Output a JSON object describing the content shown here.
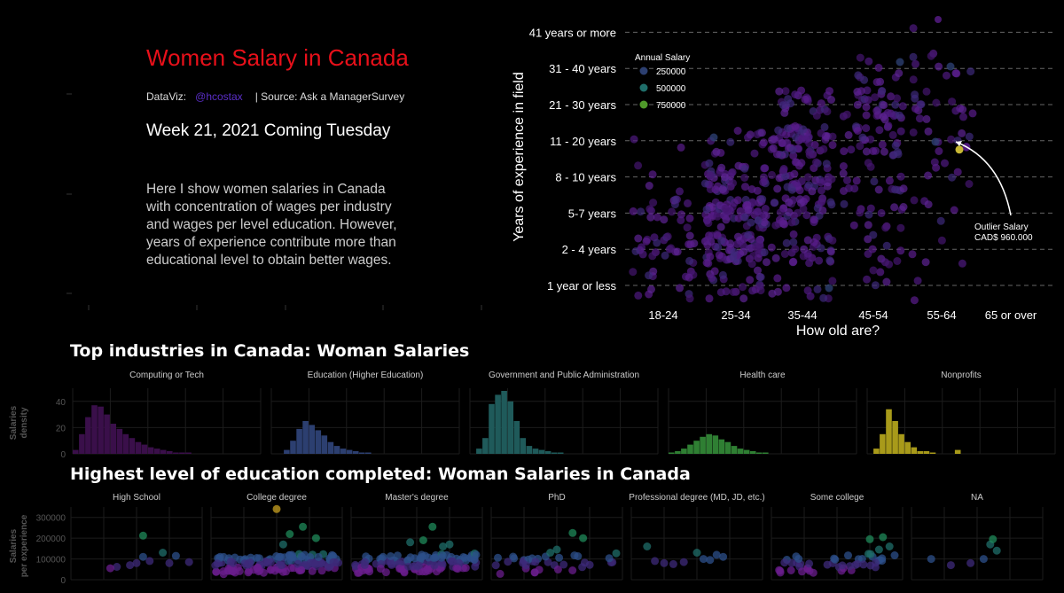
{
  "intro": {
    "title": "Women Salary in Canada",
    "credit_label": "DataViz:",
    "credit_handle": "@hcostax",
    "credit_source": "| Source: Ask a ManagerSurvey",
    "week": "Week 21, 2021 Coming Tuesday",
    "description": "Here I show women salaries in Canada with concentration of wages per industry and wages per level education. However, years of experience contribute more than educational level to obtain better wages."
  },
  "colors": {
    "background": "#000000",
    "title_red": "#e8101a",
    "handle": "#5b2ec9",
    "purple": "#5a1d8c",
    "navy": "#2c3f70",
    "teal": "#1f5a5a",
    "green": "#2f7f33",
    "gold": "#a89a1a"
  },
  "chart_data": [
    {
      "id": "scatter-main",
      "type": "scatter",
      "title": "",
      "xlabel": "How old are?",
      "ylabel": "Years of experience in field",
      "categories_x": [
        "18-24",
        "25-34",
        "35-44",
        "45-54",
        "55-64",
        "65 or over"
      ],
      "categories_y": [
        "1 year or less",
        "2 - 4 years",
        "5-7 years",
        "8 - 10 years",
        "11 - 20 years",
        "21 - 30 years",
        "31 - 40 years",
        "41 years or more"
      ],
      "legend": {
        "title": "Annual Salary",
        "entries": [
          "250000",
          "500000",
          "750000"
        ],
        "placement": "top-left"
      },
      "density_by_cell": [
        [
          14,
          25,
          18,
          4,
          2,
          0,
          0,
          0
        ],
        [
          22,
          70,
          70,
          45,
          14,
          0,
          0,
          0
        ],
        [
          10,
          30,
          40,
          45,
          60,
          25,
          0,
          0
        ],
        [
          5,
          10,
          14,
          18,
          30,
          35,
          10,
          0
        ],
        [
          2,
          4,
          5,
          7,
          10,
          16,
          10,
          1
        ],
        [
          0,
          0,
          0,
          0,
          0,
          0,
          0,
          0
        ]
      ],
      "annotation": {
        "line1": "Outlier Salary",
        "line2": "CAD$ 960.000",
        "x": "55-64",
        "y": "11 - 20 years",
        "salary": 960000
      }
    },
    {
      "id": "histograms",
      "type": "bar",
      "title": "Top industries in Canada: Woman Salaries",
      "ylabel_line1": "Salaries",
      "ylabel_line2": "density",
      "y_ticks": [
        "0",
        "20",
        "40"
      ],
      "ylim": [
        0,
        50
      ],
      "panels": [
        {
          "name": "Computing or Tech",
          "values": [
            3,
            15,
            28,
            37,
            36,
            30,
            23,
            19,
            15,
            12,
            9,
            7,
            5,
            4,
            3,
            2,
            1,
            1,
            1,
            0,
            0,
            0,
            0,
            0,
            0,
            0,
            0,
            0,
            0,
            0
          ]
        },
        {
          "name": "Education (Higher Education)",
          "values": [
            0,
            0,
            3,
            10,
            19,
            25,
            22,
            18,
            14,
            9,
            6,
            4,
            3,
            2,
            1,
            1,
            0,
            0,
            0,
            0,
            0,
            0,
            0,
            0,
            0,
            0,
            0,
            0,
            0,
            0
          ]
        },
        {
          "name": "Government and Public Administration",
          "values": [
            0,
            4,
            12,
            38,
            45,
            48,
            40,
            25,
            12,
            6,
            4,
            3,
            2,
            1,
            1,
            0,
            0,
            0,
            0,
            0,
            0,
            0,
            0,
            0,
            0,
            0,
            0,
            0,
            0,
            0
          ]
        },
        {
          "name": "Health care",
          "values": [
            1,
            2,
            4,
            7,
            10,
            13,
            15,
            14,
            11,
            9,
            6,
            4,
            3,
            2,
            1,
            1,
            0,
            0,
            0,
            0,
            0,
            0,
            0,
            0,
            0,
            0,
            0,
            0,
            0,
            0
          ]
        },
        {
          "name": "Nonprofits",
          "values": [
            0,
            4,
            15,
            34,
            25,
            15,
            9,
            5,
            2,
            2,
            1,
            0,
            0,
            0,
            3,
            0,
            0,
            0,
            0,
            0,
            0,
            0,
            0,
            0,
            0,
            0,
            0,
            0,
            0,
            0
          ]
        }
      ]
    },
    {
      "id": "education-scatter",
      "type": "scatter",
      "title": "Highest level of education completed: Woman Salaries in Canada",
      "ylabel_line1": "Salaries",
      "ylabel_line2": "per experience",
      "y_ticks": [
        "0",
        "100000",
        "200000",
        "300000"
      ],
      "ylim": [
        0,
        350000
      ],
      "panels": [
        {
          "name": "High School",
          "points": [
            [
              0.35,
              62000
            ],
            [
              0.45,
              70000
            ],
            [
              0.5,
              80000
            ],
            [
              0.6,
              90000
            ],
            [
              0.55,
              110000
            ],
            [
              0.55,
              212000
            ],
            [
              0.75,
              80000
            ],
            [
              0.8,
              115000
            ],
            [
              0.9,
              85000
            ],
            [
              0.3,
              55000
            ],
            [
              0.7,
              130000
            ]
          ]
        },
        {
          "name": "College degree",
          "density": 140,
          "outliers": [
            [
              0.5,
              340000
            ],
            [
              0.7,
              255000
            ],
            [
              0.6,
              220000
            ],
            [
              0.8,
              200000
            ],
            [
              0.55,
              170000
            ]
          ]
        },
        {
          "name": "Master's degree",
          "density": 120,
          "outliers": [
            [
              0.62,
              255000
            ],
            [
              0.45,
              180000
            ],
            [
              0.55,
              190000
            ],
            [
              0.75,
              170000
            ],
            [
              0.7,
              160000
            ]
          ]
        },
        {
          "name": "PhD",
          "density": 35,
          "outliers": [
            [
              0.62,
              225000
            ],
            [
              0.7,
              200000
            ],
            [
              0.5,
              145000
            ],
            [
              0.45,
              130000
            ]
          ]
        },
        {
          "name": "Professional degree (MD, JD, etc.)",
          "points": [
            [
              0.12,
              160000
            ],
            [
              0.18,
              90000
            ],
            [
              0.25,
              80000
            ],
            [
              0.32,
              75000
            ],
            [
              0.5,
              130000
            ],
            [
              0.55,
              100000
            ],
            [
              0.6,
              95000
            ],
            [
              0.65,
              120000
            ],
            [
              0.7,
              110000
            ],
            [
              0.4,
              85000
            ]
          ]
        },
        {
          "name": "Some college",
          "density": 45,
          "outliers": [
            [
              0.75,
              195000
            ],
            [
              0.85,
              205000
            ],
            [
              0.9,
              160000
            ],
            [
              0.82,
              145000
            ]
          ]
        },
        {
          "name": "NA",
          "points": [
            [
              0.15,
              100000
            ],
            [
              0.3,
              70000
            ],
            [
              0.45,
              80000
            ],
            [
              0.55,
              100000
            ],
            [
              0.6,
              170000
            ],
            [
              0.62,
              195000
            ],
            [
              0.65,
              140000
            ]
          ]
        }
      ]
    }
  ]
}
